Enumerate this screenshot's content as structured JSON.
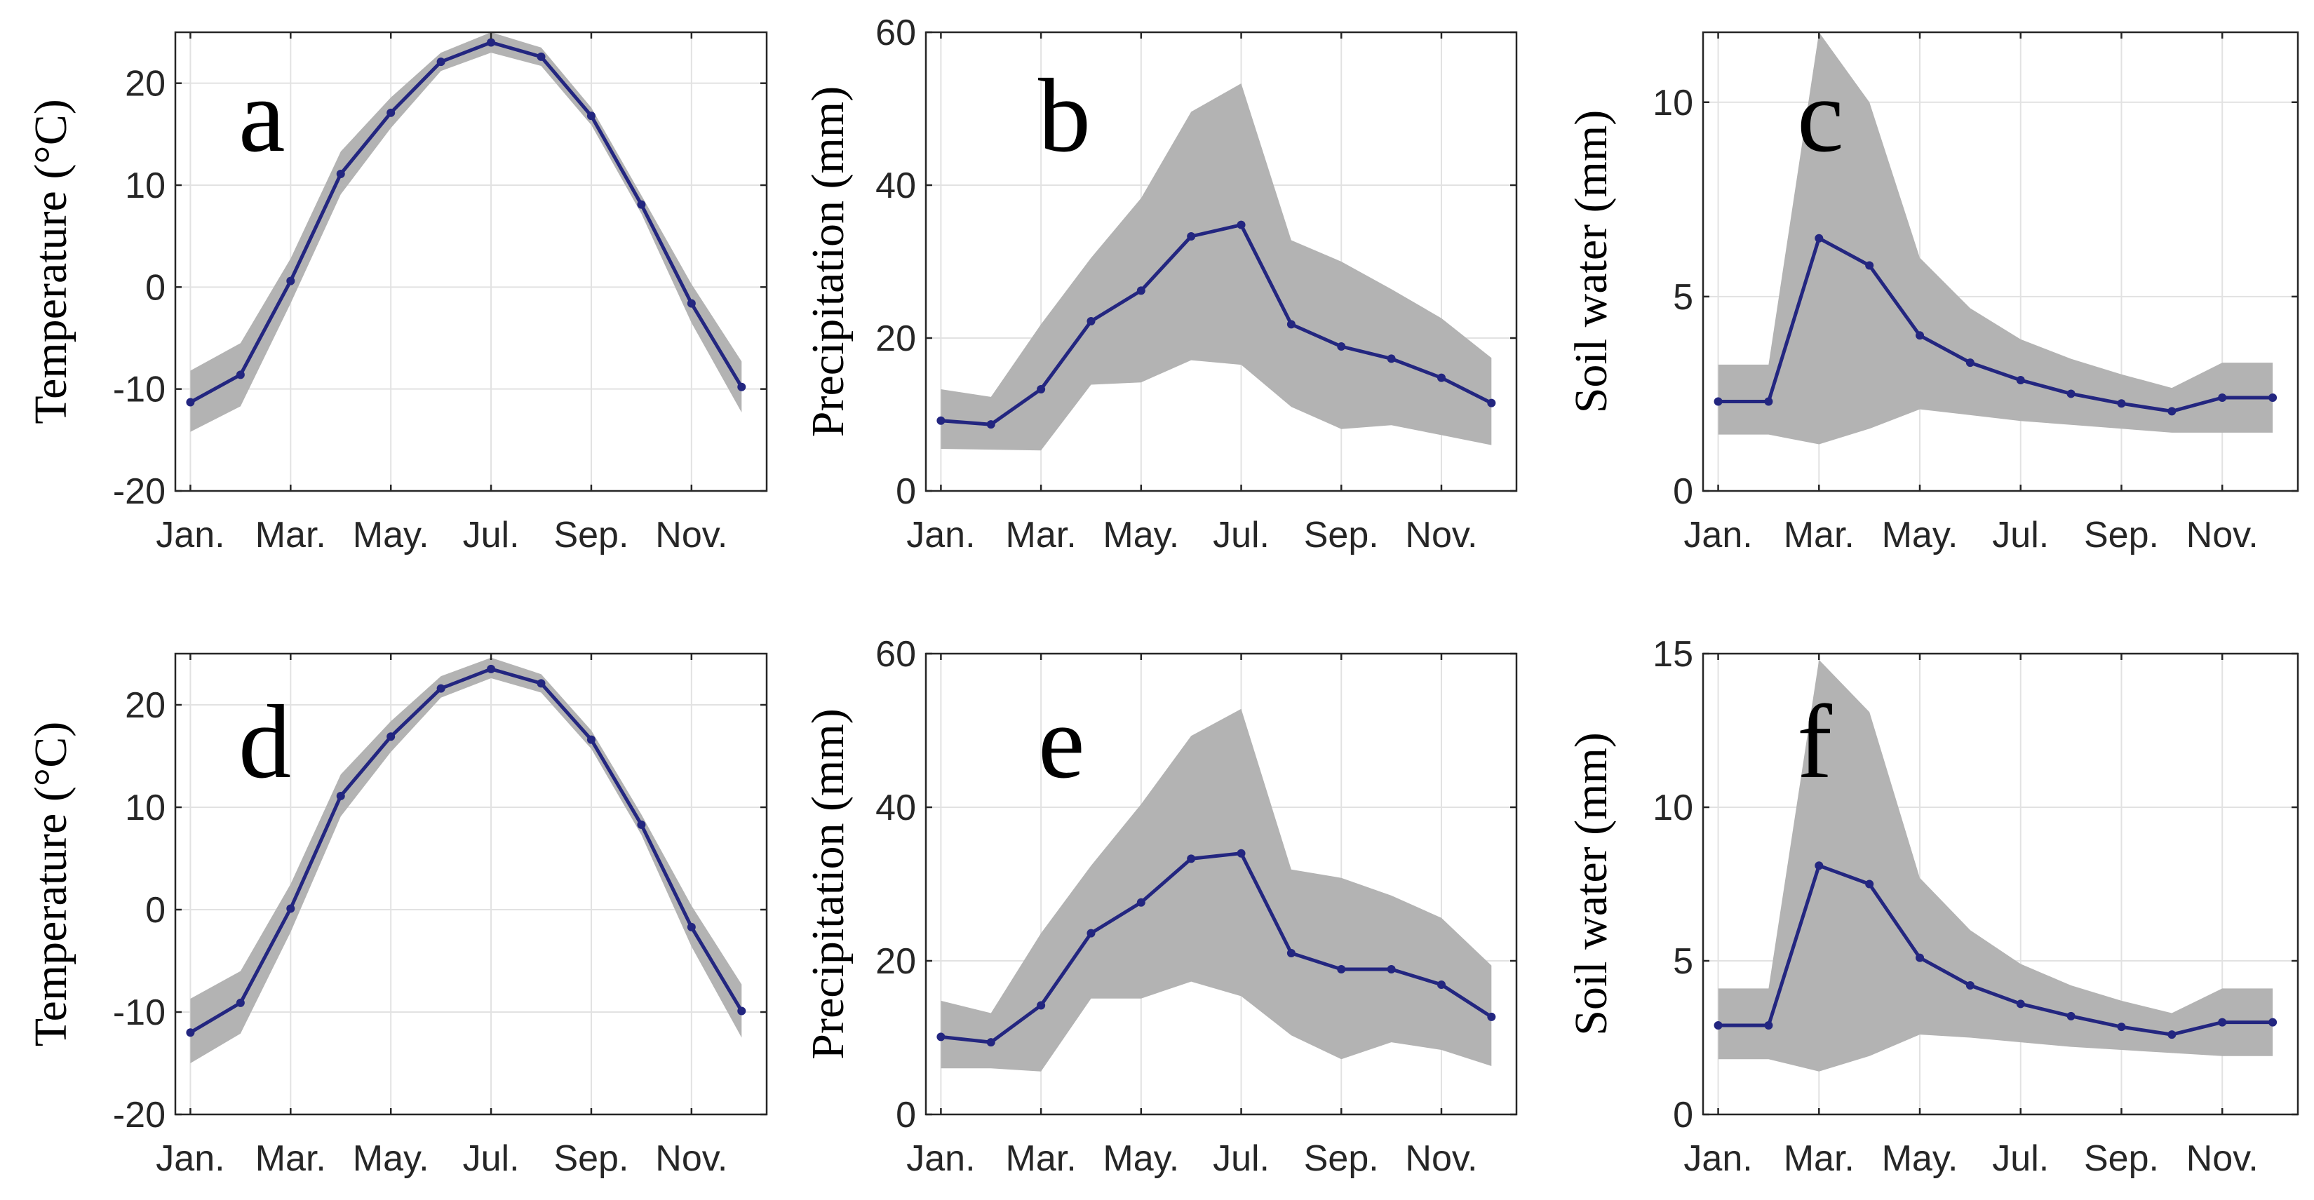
{
  "colors": {
    "band": "#b3b3b3",
    "line": "#232680"
  },
  "chart_data": [
    {
      "type": "line",
      "panel": "a",
      "ylabel": "Temperature (°C)",
      "x": [
        1,
        2,
        3,
        4,
        5,
        6,
        7,
        8,
        9,
        10,
        11,
        12
      ],
      "xticks": [
        1,
        3,
        5,
        7,
        9,
        11
      ],
      "xtick_labels": [
        "Jan.",
        "Mar.",
        "May.",
        "Jul.",
        "Sep.",
        "Nov."
      ],
      "xlim": [
        0.7,
        12.5
      ],
      "ylim": [
        -20,
        25
      ],
      "yticks": [
        -20,
        -10,
        0,
        10,
        20
      ],
      "ytick_labels": [
        "-20",
        "-10",
        "0",
        "10",
        "20"
      ],
      "grid": true,
      "series": [
        {
          "name": "mean",
          "values": [
            -11.3,
            -8.6,
            0.6,
            11.1,
            17.1,
            22.1,
            24.0,
            22.6,
            16.8,
            8.1,
            -1.6,
            -9.8
          ]
        },
        {
          "name": "upper",
          "values": [
            -8.2,
            -5.5,
            2.8,
            13.3,
            18.6,
            23.0,
            25.0,
            23.5,
            17.6,
            9.0,
            0.3,
            -7.3
          ]
        },
        {
          "name": "lower",
          "values": [
            -14.2,
            -11.7,
            -1.6,
            9.1,
            15.6,
            21.2,
            23.0,
            21.7,
            15.9,
            7.2,
            -3.5,
            -12.3
          ]
        }
      ]
    },
    {
      "type": "line",
      "panel": "b",
      "ylabel": "Precipitation (mm)",
      "x": [
        1,
        2,
        3,
        4,
        5,
        6,
        7,
        8,
        9,
        10,
        11,
        12
      ],
      "xticks": [
        1,
        3,
        5,
        7,
        9,
        11
      ],
      "xtick_labels": [
        "Jan.",
        "Mar.",
        "May.",
        "Jul.",
        "Sep.",
        "Nov."
      ],
      "xlim": [
        0.7,
        12.5
      ],
      "ylim": [
        0,
        60
      ],
      "yticks": [
        0,
        20,
        40,
        60
      ],
      "ytick_labels": [
        "0",
        "20",
        "40",
        "60"
      ],
      "grid": true,
      "series": [
        {
          "name": "mean",
          "values": [
            9.2,
            8.7,
            13.3,
            22.2,
            26.2,
            33.3,
            34.8,
            21.8,
            18.9,
            17.3,
            14.8,
            11.5
          ]
        },
        {
          "name": "upper",
          "values": [
            13.3,
            12.3,
            21.8,
            30.5,
            38.3,
            49.6,
            53.3,
            32.8,
            30.0,
            26.4,
            22.6,
            17.4
          ]
        },
        {
          "name": "lower",
          "values": [
            5.5,
            5.4,
            5.3,
            13.9,
            14.2,
            17.1,
            16.5,
            11.0,
            8.1,
            8.6,
            7.3,
            6.0
          ]
        }
      ]
    },
    {
      "type": "line",
      "panel": "c",
      "ylabel": "Soil water (mm)",
      "x": [
        1,
        2,
        3,
        4,
        5,
        6,
        7,
        8,
        9,
        10,
        11,
        12
      ],
      "xticks": [
        1,
        3,
        5,
        7,
        9,
        11
      ],
      "xtick_labels": [
        "Jan.",
        "Mar.",
        "May.",
        "Jul.",
        "Sep.",
        "Nov."
      ],
      "xlim": [
        0.7,
        12.5
      ],
      "ylim": [
        0,
        11.8
      ],
      "yticks": [
        0,
        5,
        10
      ],
      "ytick_labels": [
        "0",
        "5",
        "10"
      ],
      "grid": true,
      "series": [
        {
          "name": "mean",
          "values": [
            2.3,
            2.3,
            6.5,
            5.8,
            4.0,
            3.3,
            2.85,
            2.5,
            2.25,
            2.05,
            2.4,
            2.4
          ]
        },
        {
          "name": "upper",
          "values": [
            3.25,
            3.25,
            11.8,
            10.0,
            6.0,
            4.7,
            3.9,
            3.4,
            3.0,
            2.65,
            3.3,
            3.3
          ]
        },
        {
          "name": "lower",
          "values": [
            1.45,
            1.45,
            1.2,
            1.6,
            2.1,
            1.95,
            1.8,
            1.7,
            1.6,
            1.5,
            1.5,
            1.5
          ]
        }
      ]
    },
    {
      "type": "line",
      "panel": "d",
      "ylabel": "Temperature (°C)",
      "x": [
        1,
        2,
        3,
        4,
        5,
        6,
        7,
        8,
        9,
        10,
        11,
        12
      ],
      "xticks": [
        1,
        3,
        5,
        7,
        9,
        11
      ],
      "xtick_labels": [
        "Jan.",
        "Mar.",
        "May.",
        "Jul.",
        "Sep.",
        "Nov."
      ],
      "xlim": [
        0.7,
        12.5
      ],
      "ylim": [
        -20,
        25
      ],
      "yticks": [
        -20,
        -10,
        0,
        10,
        20
      ],
      "ytick_labels": [
        "-20",
        "-10",
        "0",
        "10",
        "20"
      ],
      "grid": true,
      "series": [
        {
          "name": "mean",
          "values": [
            -12.0,
            -9.1,
            0.1,
            11.1,
            16.9,
            21.6,
            23.5,
            22.1,
            16.6,
            8.3,
            -1.7,
            -9.9
          ]
        },
        {
          "name": "upper",
          "values": [
            -8.7,
            -6.0,
            2.5,
            13.2,
            18.4,
            22.8,
            24.6,
            23.0,
            17.5,
            9.3,
            0.4,
            -7.3
          ]
        },
        {
          "name": "lower",
          "values": [
            -15.0,
            -12.1,
            -2.2,
            9.1,
            15.4,
            20.7,
            22.6,
            21.2,
            15.7,
            7.3,
            -3.6,
            -12.5
          ]
        }
      ]
    },
    {
      "type": "line",
      "panel": "e",
      "ylabel": "Precipitation (mm)",
      "x": [
        1,
        2,
        3,
        4,
        5,
        6,
        7,
        8,
        9,
        10,
        11,
        12
      ],
      "xticks": [
        1,
        3,
        5,
        7,
        9,
        11
      ],
      "xtick_labels": [
        "Jan.",
        "Mar.",
        "May.",
        "Jul.",
        "Sep.",
        "Nov."
      ],
      "xlim": [
        0.7,
        12.5
      ],
      "ylim": [
        0,
        60
      ],
      "yticks": [
        0,
        20,
        40,
        60
      ],
      "ytick_labels": [
        "0",
        "20",
        "40",
        "60"
      ],
      "grid": true,
      "series": [
        {
          "name": "mean",
          "values": [
            10.1,
            9.4,
            14.2,
            23.6,
            27.6,
            33.3,
            34.0,
            21.0,
            18.9,
            18.9,
            16.9,
            12.7
          ]
        },
        {
          "name": "upper",
          "values": [
            14.8,
            13.2,
            23.6,
            32.4,
            40.4,
            49.3,
            52.8,
            31.9,
            30.8,
            28.5,
            25.6,
            19.4
          ]
        },
        {
          "name": "lower",
          "values": [
            6.0,
            6.0,
            5.6,
            15.1,
            15.1,
            17.3,
            15.4,
            10.3,
            7.2,
            9.4,
            8.4,
            6.3
          ]
        }
      ]
    },
    {
      "type": "line",
      "panel": "f",
      "ylabel": "Soil water (mm)",
      "x": [
        1,
        2,
        3,
        4,
        5,
        6,
        7,
        8,
        9,
        10,
        11,
        12
      ],
      "xticks": [
        1,
        3,
        5,
        7,
        9,
        11
      ],
      "xtick_labels": [
        "Jan.",
        "Mar.",
        "May.",
        "Jul.",
        "Sep.",
        "Nov."
      ],
      "xlim": [
        0.7,
        12.5
      ],
      "ylim": [
        0,
        15
      ],
      "yticks": [
        0,
        5,
        10,
        15
      ],
      "ytick_labels": [
        "0",
        "5",
        "10",
        "15"
      ],
      "grid": true,
      "series": [
        {
          "name": "mean",
          "values": [
            2.9,
            2.9,
            8.1,
            7.5,
            5.1,
            4.2,
            3.6,
            3.2,
            2.85,
            2.6,
            3.0,
            3.0
          ]
        },
        {
          "name": "upper",
          "values": [
            4.1,
            4.1,
            14.8,
            13.1,
            7.7,
            6.0,
            4.9,
            4.2,
            3.7,
            3.3,
            4.1,
            4.1
          ]
        },
        {
          "name": "lower",
          "values": [
            1.8,
            1.8,
            1.4,
            1.9,
            2.6,
            2.5,
            2.35,
            2.2,
            2.1,
            2.0,
            1.9,
            1.9
          ]
        }
      ]
    }
  ]
}
